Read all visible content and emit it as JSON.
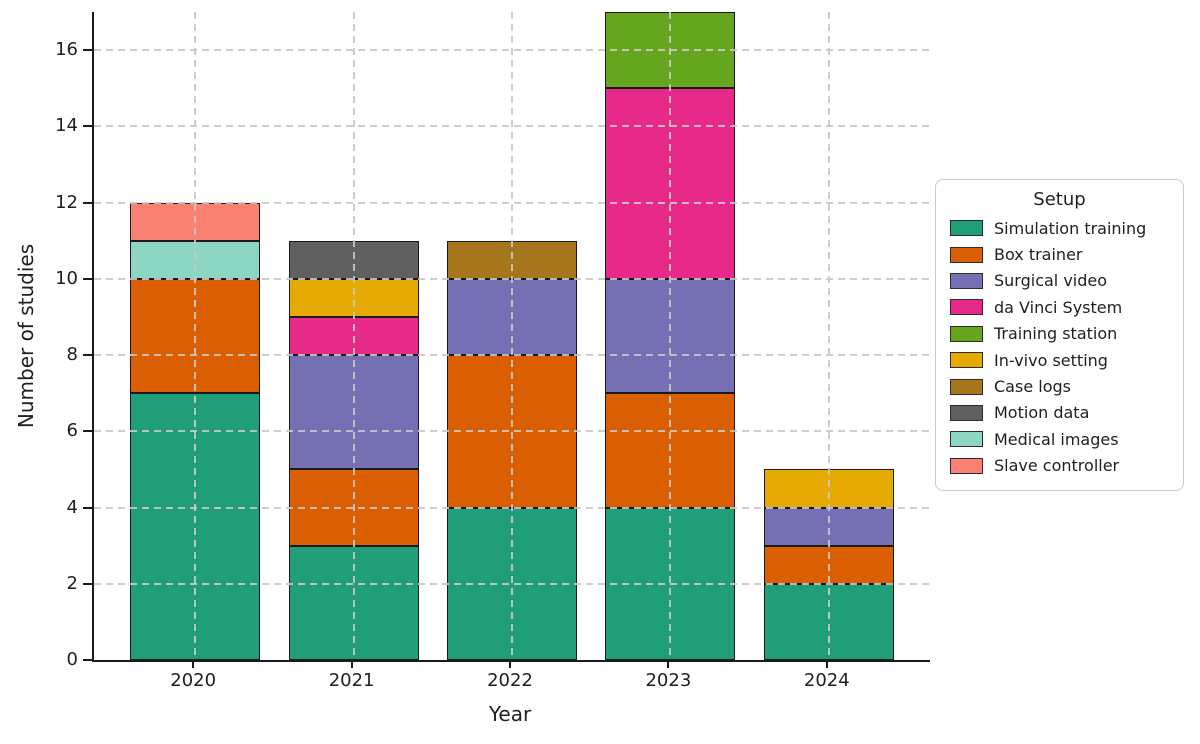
{
  "chart_data": {
    "type": "bar",
    "stacked": true,
    "title": "",
    "xlabel": "Year",
    "ylabel": "Number of studies",
    "categories": [
      "2020",
      "2021",
      "2022",
      "2023",
      "2024"
    ],
    "series": [
      {
        "name": "Simulation training",
        "color": "#1f9e78",
        "values": [
          7,
          3,
          4,
          4,
          2
        ]
      },
      {
        "name": "Box trainer",
        "color": "#d95f02",
        "values": [
          3,
          2,
          4,
          3,
          1
        ]
      },
      {
        "name": "Surgical video",
        "color": "#7570b3",
        "values": [
          0,
          3,
          2,
          3,
          1
        ]
      },
      {
        "name": "da Vinci System",
        "color": "#e7298a",
        "values": [
          0,
          1,
          0,
          5,
          0
        ]
      },
      {
        "name": "Training station",
        "color": "#66a61e",
        "values": [
          0,
          0,
          0,
          2,
          0
        ]
      },
      {
        "name": "In-vivo setting",
        "color": "#e6ab02",
        "values": [
          0,
          1,
          0,
          0,
          1
        ]
      },
      {
        "name": "Case logs",
        "color": "#a6761d",
        "values": [
          0,
          0,
          1,
          0,
          0
        ]
      },
      {
        "name": "Motion data",
        "color": "#606060",
        "values": [
          0,
          1,
          0,
          0,
          0
        ]
      },
      {
        "name": "Medical images",
        "color": "#8cd6c3",
        "values": [
          1,
          0,
          0,
          0,
          0
        ]
      },
      {
        "name": "Slave controller",
        "color": "#fa8072",
        "values": [
          1,
          0,
          0,
          0,
          0
        ]
      }
    ],
    "bar_totals": [
      12,
      11,
      11,
      17,
      5
    ],
    "y_ticks": [
      0,
      2,
      4,
      6,
      8,
      10,
      12,
      14,
      16
    ],
    "ylim": [
      0,
      17
    ],
    "grid": "dashed, both axes, drawn above bars",
    "edge_color": "#1a1a1a",
    "legend": {
      "title": "Setup",
      "position": "right"
    }
  }
}
